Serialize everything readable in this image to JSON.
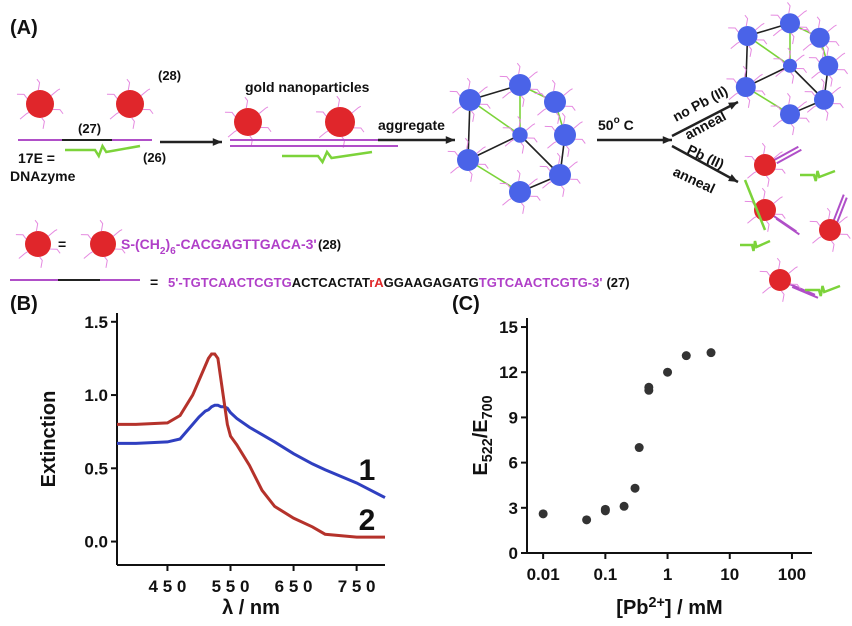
{
  "panel_a": {
    "label": "(A)",
    "ref_28": "(28)",
    "ref_27": "(27)",
    "enzyme": "17E =",
    "enzyme_name": "DNAzyme",
    "ref_26": "(26)",
    "gold": "gold nanoparticles",
    "aggregate": "aggregate",
    "heat": "50o C",
    "no_pb": "no Pb (II)",
    "anneal_1": "anneal",
    "pb": "Pb (II)",
    "anneal_2": "anneal",
    "equals_1": "=",
    "seq_28": "S-(CH2)6-CACGAGTTGACA-3'",
    "seq_28_ref": "(28)",
    "equals_2": "=",
    "seq_27": [
      {
        "text": "5'-TGTCAACTCGTG",
        "color": "#b03fc8"
      },
      {
        "text": "ACTCACTAT",
        "color": "#111111"
      },
      {
        "text": "rA",
        "color": "#e0282a"
      },
      {
        "text": "GGAAGAGATG",
        "color": "#111111"
      },
      {
        "text": "TGTCAACTCGTG-3'",
        "color": "#b03fc8"
      }
    ],
    "seq_27_ref": "(27)"
  },
  "chart_data": [
    {
      "type": "line",
      "panel_label": "(B)",
      "x_label": "λ / nm",
      "y_label": "Extinction",
      "x": [
        370,
        400,
        450,
        470,
        490,
        500,
        510,
        515,
        520,
        525,
        530,
        535,
        540,
        545,
        550,
        560,
        580,
        600,
        620,
        650,
        680,
        700,
        750,
        795
      ],
      "series": [
        {
          "name": "1",
          "color": "#2f3fc0",
          "values": [
            0.67,
            0.67,
            0.68,
            0.7,
            0.8,
            0.85,
            0.89,
            0.9,
            0.92,
            0.93,
            0.93,
            0.92,
            0.92,
            0.91,
            0.88,
            0.84,
            0.78,
            0.73,
            0.68,
            0.6,
            0.53,
            0.49,
            0.4,
            0.3
          ]
        },
        {
          "name": "2",
          "color": "#b5322b",
          "values": [
            0.8,
            0.8,
            0.81,
            0.86,
            1.0,
            1.1,
            1.2,
            1.25,
            1.28,
            1.28,
            1.25,
            1.1,
            0.95,
            0.8,
            0.72,
            0.66,
            0.52,
            0.35,
            0.24,
            0.16,
            0.1,
            0.05,
            0.03,
            0.03
          ]
        }
      ],
      "xlim": [
        370,
        795
      ],
      "xticks": [
        {
          "value": 450,
          "label": "4 5 0"
        },
        {
          "value": 550,
          "label": "5 5 0"
        },
        {
          "value": 650,
          "label": "6 5 0"
        },
        {
          "value": 750,
          "label": "7 5 0"
        }
      ],
      "ylim": [
        -0.16,
        1.56
      ],
      "yticks": [
        {
          "value": 0,
          "label": "0.0"
        },
        0.5,
        {
          "value": 1,
          "label": "1.0"
        },
        1.5
      ]
    },
    {
      "type": "scatter",
      "panel_label": "(C)",
      "x_label": "[Pb2+] / mM",
      "y_label": "E522/E700",
      "log_x": true,
      "color": "#333333",
      "x": [
        0.01,
        0.05,
        0.1,
        0.1,
        0.2,
        0.3,
        0.35,
        0.5,
        0.5,
        1,
        2,
        5
      ],
      "values": [
        2.6,
        2.2,
        2.8,
        2.9,
        3.1,
        4.3,
        7.0,
        10.8,
        11.0,
        12.0,
        13.1,
        13.3
      ],
      "xlim": [
        0.0055,
        210
      ],
      "xticks": [
        0.01,
        0.1,
        1,
        10,
        100
      ],
      "ylim": [
        0,
        15.6
      ],
      "yticks": [
        0,
        3,
        6,
        9,
        12,
        15
      ]
    }
  ]
}
